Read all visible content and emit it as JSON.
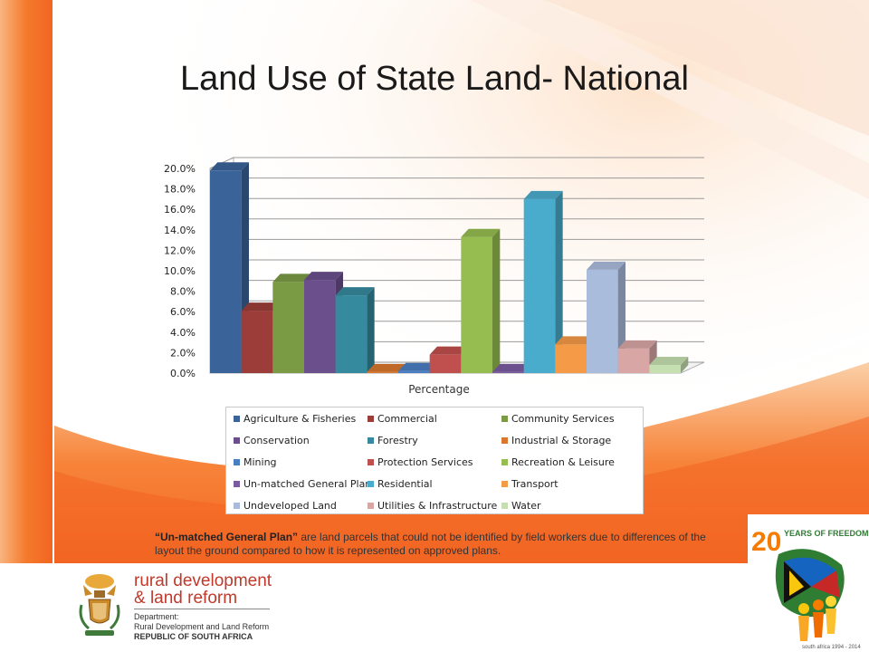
{
  "slide": {
    "title": "Land Use of State Land- National",
    "footnote_bold": "“Un-matched General Plan”",
    "footnote_rest": " are land parcels that could not be identified by field workers due to differences of the layout the ground compared to how it is represented on approved plans."
  },
  "chart_data": {
    "type": "bar",
    "xlabel": "Percentage",
    "ylim": [
      0,
      20
    ],
    "yticks": [
      "0.0%",
      "2.0%",
      "4.0%",
      "6.0%",
      "8.0%",
      "10.0%",
      "12.0%",
      "14.0%",
      "16.0%",
      "18.0%",
      "20.0%"
    ],
    "categories": [
      "Agriculture & Fisheries",
      "Commercial",
      "Community Services",
      "Conservation",
      "Forestry",
      "Industrial & Storage",
      "Mining",
      "Protection Services",
      "Recreation & Leisure",
      "Un-matched General Plan",
      "Residential",
      "Transport",
      "Undeveloped Land",
      "Utilities & Infrastructure",
      "Water"
    ],
    "values": [
      19.8,
      6.1,
      8.9,
      9.1,
      7.6,
      0.1,
      0.2,
      1.8,
      13.3,
      0.1,
      17.0,
      2.8,
      10.1,
      2.4,
      0.8
    ],
    "colors": [
      "#3a6399",
      "#9c3d3a",
      "#7a9a44",
      "#6a4f8c",
      "#358a9e",
      "#d9772e",
      "#4a7ec4",
      "#c0504d",
      "#96bd4f",
      "#7a5ba0",
      "#4aaccc",
      "#f59a46",
      "#a9bcdc",
      "#d9a6a6",
      "#c6dfb0"
    ],
    "legend_position": "bottom",
    "grid": true
  },
  "department": {
    "name_line1": "rural development",
    "name_line2": "& land reform",
    "sub_line1": "Department:",
    "sub_line2": "Rural Development and Land Reform",
    "sub_line3": "REPUBLIC OF SOUTH AFRICA"
  },
  "badge": {
    "big_number": "20",
    "text": "YEARS OF FREEDOM",
    "arc_text": "south africa 1994 - 2014"
  },
  "colors": {
    "accent_orange": "#f26522",
    "dept_red": "#c0392b"
  }
}
